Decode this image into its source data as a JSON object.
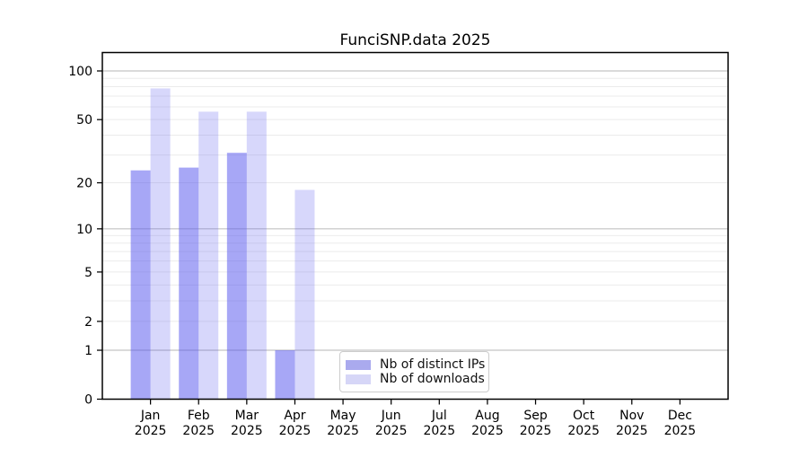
{
  "figure": {
    "title": "FunciSNP.data 2025"
  },
  "chart_data": {
    "type": "bar",
    "title": "FunciSNP.data 2025",
    "months": [
      "Jan",
      "Feb",
      "Mar",
      "Apr",
      "May",
      "Jun",
      "Jul",
      "Aug",
      "Sep",
      "Oct",
      "Nov",
      "Dec"
    ],
    "year": "2025",
    "series": [
      {
        "name": "Nb of distinct IPs",
        "values": [
          24,
          25,
          31,
          1,
          0,
          0,
          0,
          0,
          0,
          0,
          0,
          0
        ]
      },
      {
        "name": "Nb of downloads",
        "values": [
          78,
          56,
          56,
          18,
          0,
          0,
          0,
          0,
          0,
          0,
          0,
          0
        ]
      }
    ],
    "y_ticks": [
      0,
      1,
      2,
      5,
      10,
      20,
      50,
      100
    ],
    "y_minor_gridlines": [
      2,
      3,
      4,
      5,
      6,
      7,
      8,
      9,
      20,
      30,
      40,
      50,
      60,
      70,
      80,
      90
    ],
    "y_major_gridlines": [
      1,
      10,
      100
    ],
    "y_scale": "log1p",
    "ylim": [
      0,
      130
    ],
    "grid": "horizontal",
    "legend_position": "inside-bottom-center"
  },
  "colors": {
    "bar_base": "#5656ee",
    "ips_alpha": "0.52",
    "downloads_alpha": "0.24",
    "ips_solid": "#aaaaee",
    "downloads_solid": "#d6d6f7",
    "grid_major": "#c3c3c3",
    "grid_minor": "#ebebeb",
    "spine": "#000000",
    "text": "#000000"
  }
}
